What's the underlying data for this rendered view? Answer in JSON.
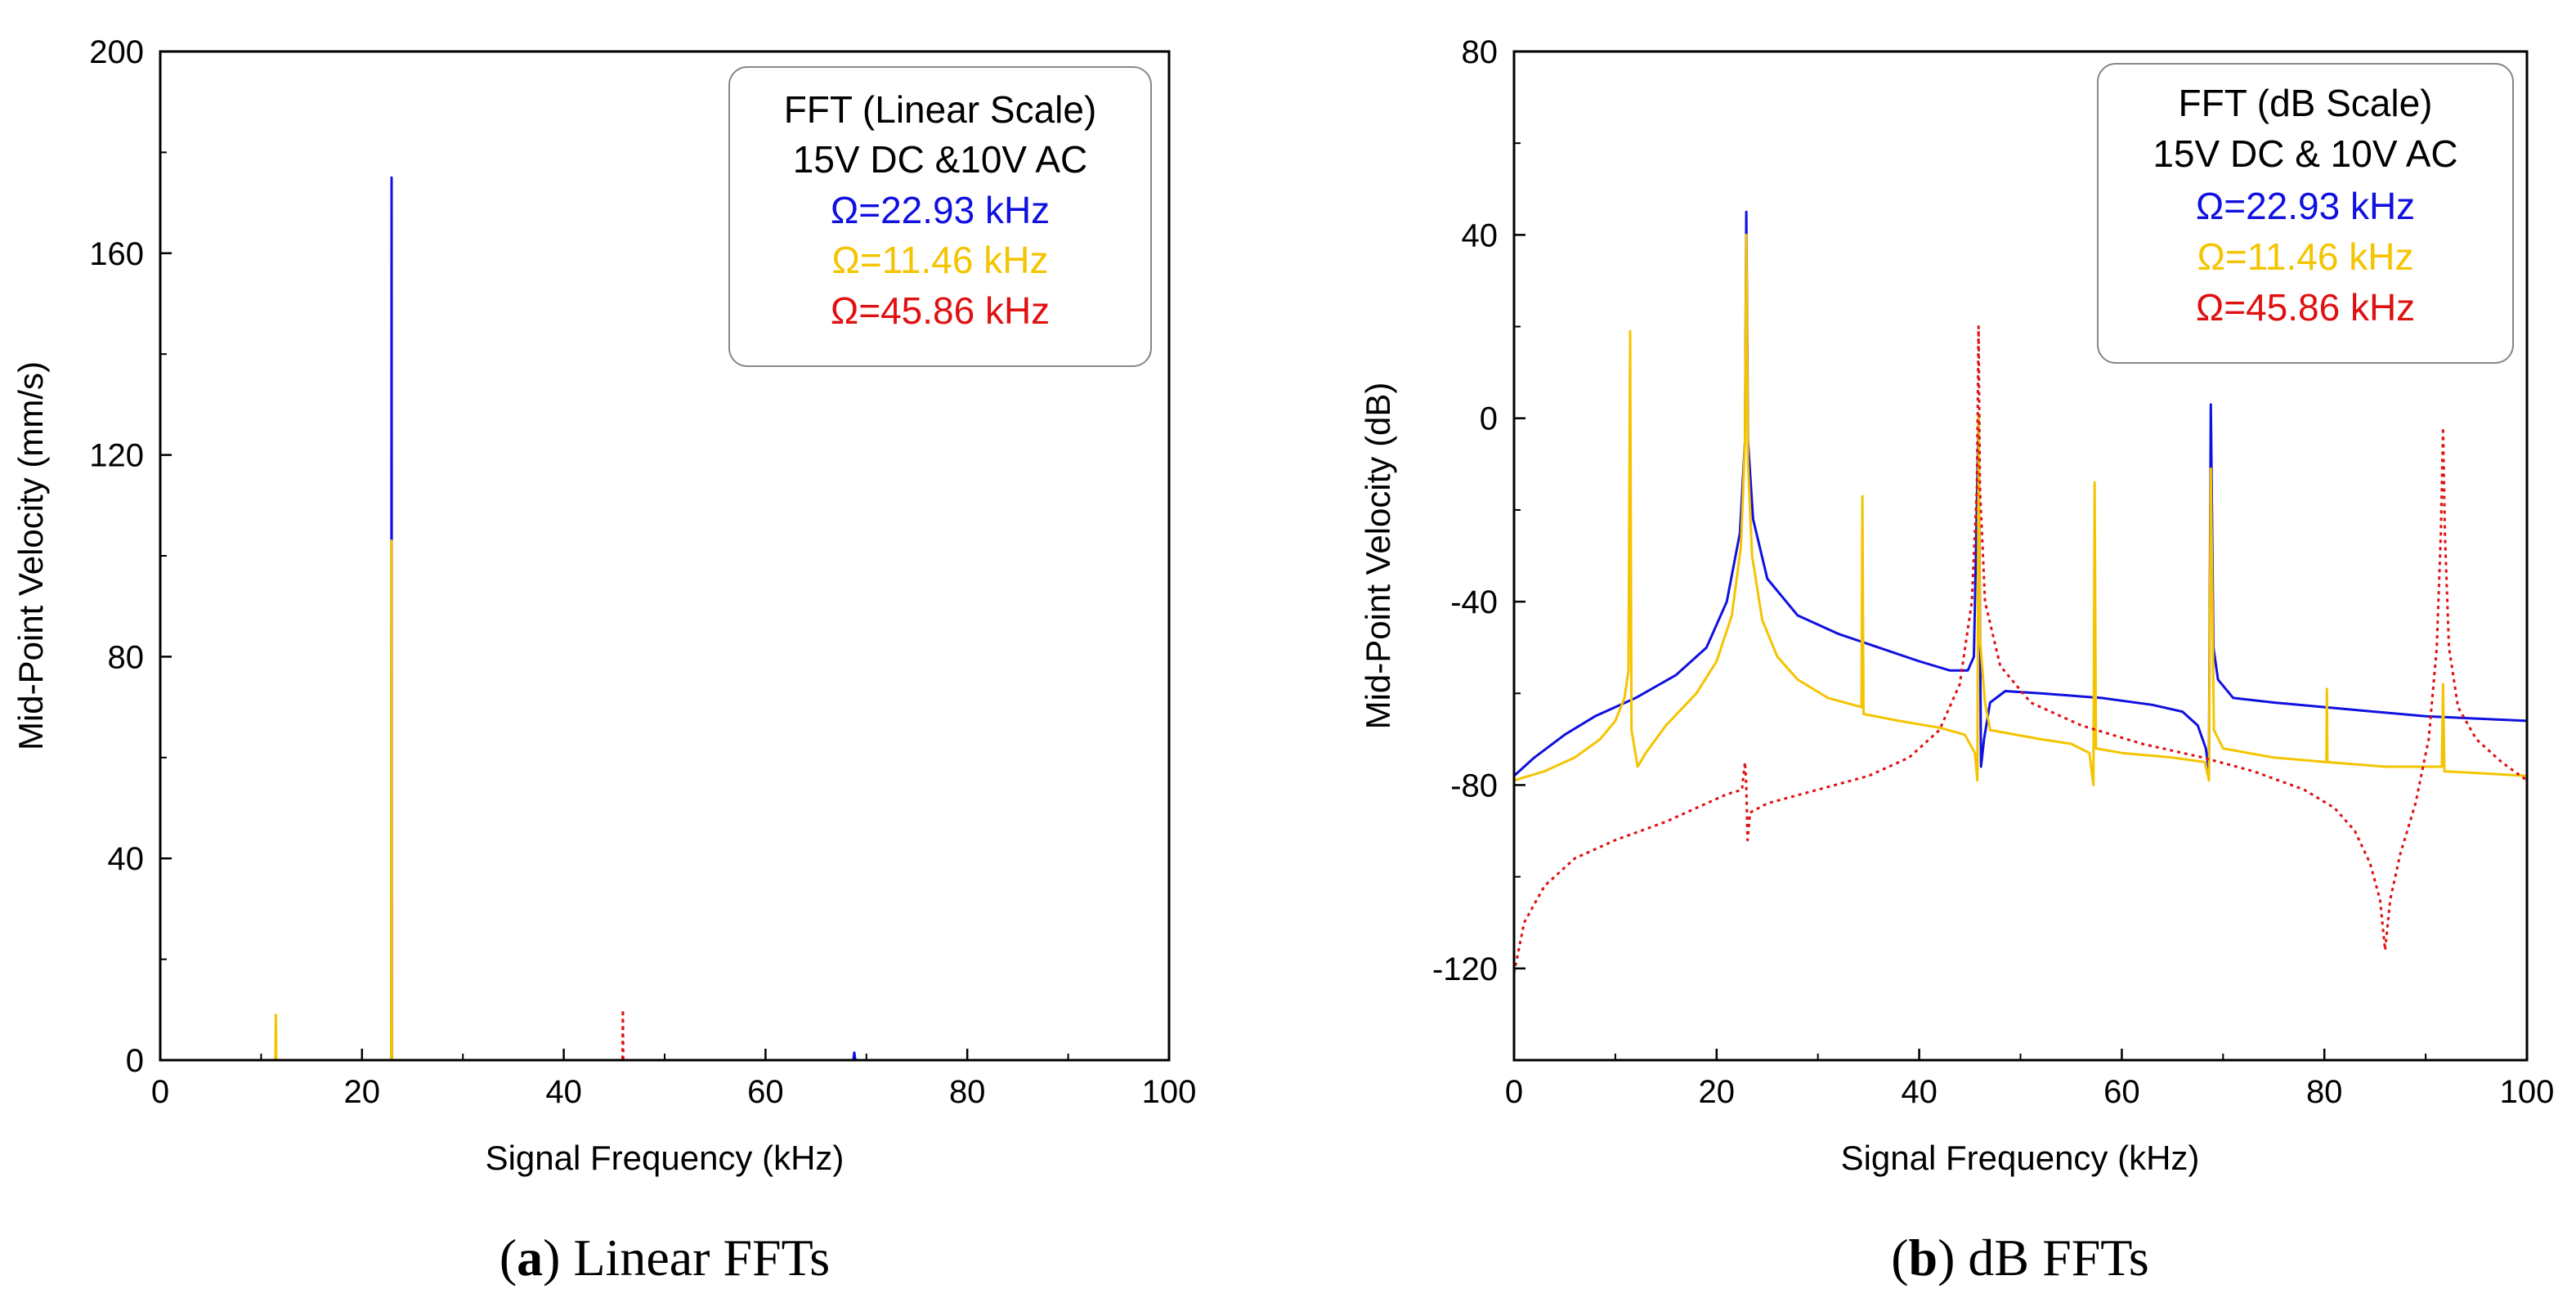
{
  "colors": {
    "blue": "#1010e0",
    "yellow": "#f5c400",
    "red": "#e01010",
    "black": "#000000"
  },
  "chart_data": [
    {
      "id": "a",
      "type": "line",
      "caption_letter": "a",
      "caption_text": " Linear FFTs",
      "xlabel": "Signal Frequency (kHz)",
      "ylabel": "Mid-Point Velocity (mm/s)",
      "xlim": [
        0,
        100
      ],
      "ylim": [
        0,
        200
      ],
      "xticks": [
        0,
        20,
        40,
        60,
        80,
        100
      ],
      "xtick_labels": [
        "0",
        "20",
        "40",
        "60",
        "80",
        "100"
      ],
      "yticks": [
        0,
        40,
        80,
        120,
        160,
        200
      ],
      "ytick_labels": [
        "0",
        "40",
        "80",
        "120",
        "160",
        "200"
      ],
      "legend_title_lines": [
        "FFT (Linear Scale)",
        "15V DC &10V AC"
      ],
      "legend_entries": [
        "Ω=22.93 kHz",
        "Ω=11.46 kHz",
        "Ω=45.86 kHz"
      ],
      "legend_colors": [
        "#1010e0",
        "#f5c400",
        "#e01010"
      ],
      "series": [
        {
          "name": "Ω=22.93 kHz",
          "color": "#1010e0",
          "dash": "",
          "points": [
            [
              0,
              0
            ],
            [
              22.9,
              0
            ],
            [
              22.93,
              175
            ],
            [
              22.96,
              0
            ],
            [
              68.7,
              0
            ],
            [
              68.8,
              1.5
            ],
            [
              68.9,
              0
            ],
            [
              100,
              0
            ]
          ]
        },
        {
          "name": "Ω=11.46 kHz",
          "color": "#f5c400",
          "dash": "",
          "points": [
            [
              0,
              0
            ],
            [
              11.42,
              0
            ],
            [
              11.46,
              9
            ],
            [
              11.5,
              0
            ],
            [
              22.9,
              0
            ],
            [
              22.93,
              103
            ],
            [
              22.96,
              0
            ],
            [
              100,
              0
            ]
          ]
        },
        {
          "name": "Ω=45.86 kHz",
          "color": "#e01010",
          "dash": "4,5",
          "points": [
            [
              0,
              0
            ],
            [
              45.82,
              0
            ],
            [
              45.86,
              10
            ],
            [
              45.9,
              0
            ],
            [
              91.7,
              0
            ],
            [
              91.72,
              0.5
            ],
            [
              91.75,
              0
            ],
            [
              100,
              0
            ]
          ]
        }
      ]
    },
    {
      "id": "b",
      "type": "line",
      "caption_letter": "b",
      "caption_text": " dB FFTs",
      "xlabel": "Signal Frequency (kHz)",
      "ylabel": "Mid-Point Velocity (dB)",
      "xlim": [
        0,
        100
      ],
      "ylim": [
        -140,
        80
      ],
      "xticks": [
        0,
        20,
        40,
        60,
        80,
        100
      ],
      "xtick_labels": [
        "0",
        "20",
        "40",
        "60",
        "80",
        "100"
      ],
      "yticks": [
        -120,
        -80,
        -40,
        0,
        40,
        80
      ],
      "ytick_labels": [
        "-120",
        "-80",
        "-40",
        "0",
        "40",
        "80"
      ],
      "legend_title_lines": [
        "FFT (dB Scale)",
        "15V DC & 10V AC"
      ],
      "legend_entries": [
        "Ω=22.93 kHz",
        "Ω=11.46 kHz",
        "Ω=45.86 kHz"
      ],
      "legend_colors": [
        "#1010e0",
        "#f5c400",
        "#e01010"
      ],
      "series": [
        {
          "name": "Ω=22.93 kHz",
          "color": "#1010e0",
          "dash": "",
          "points": [
            [
              0,
              -78
            ],
            [
              2,
              -74
            ],
            [
              5,
              -69
            ],
            [
              8,
              -65
            ],
            [
              12,
              -61
            ],
            [
              16,
              -56
            ],
            [
              19,
              -50
            ],
            [
              21,
              -40
            ],
            [
              22.3,
              -25
            ],
            [
              22.8,
              -5
            ],
            [
              22.93,
              45
            ],
            [
              23.1,
              -5
            ],
            [
              23.6,
              -22
            ],
            [
              25,
              -35
            ],
            [
              28,
              -43
            ],
            [
              32,
              -47
            ],
            [
              36,
              -50
            ],
            [
              40,
              -53
            ],
            [
              43,
              -55
            ],
            [
              44.8,
              -55
            ],
            [
              45.4,
              -52
            ],
            [
              45.86,
              0
            ],
            [
              46.1,
              -76
            ],
            [
              46.4,
              -70
            ],
            [
              47,
              -62
            ],
            [
              48.5,
              -59.5
            ],
            [
              52,
              -60
            ],
            [
              58,
              -61
            ],
            [
              63,
              -62.5
            ],
            [
              66,
              -64
            ],
            [
              67.5,
              -67
            ],
            [
              68.3,
              -72
            ],
            [
              68.6,
              -77
            ],
            [
              68.79,
              3
            ],
            [
              69.05,
              -50
            ],
            [
              69.5,
              -57
            ],
            [
              71,
              -61
            ],
            [
              75,
              -62
            ],
            [
              80,
              -63
            ],
            [
              85,
              -64
            ],
            [
              90,
              -65
            ],
            [
              95,
              -65.5
            ],
            [
              100,
              -66
            ]
          ]
        },
        {
          "name": "Ω=11.46 kHz",
          "color": "#f5c400",
          "dash": "",
          "points": [
            [
              0,
              -79
            ],
            [
              3,
              -77
            ],
            [
              6,
              -74
            ],
            [
              8.5,
              -70
            ],
            [
              10,
              -66
            ],
            [
              10.9,
              -61
            ],
            [
              11.3,
              -55
            ],
            [
              11.46,
              19
            ],
            [
              11.6,
              -68
            ],
            [
              12.2,
              -76
            ],
            [
              13,
              -73
            ],
            [
              15,
              -67
            ],
            [
              18,
              -60
            ],
            [
              20,
              -53
            ],
            [
              21.5,
              -43
            ],
            [
              22.4,
              -28
            ],
            [
              22.8,
              -5
            ],
            [
              22.93,
              40
            ],
            [
              23.1,
              -10
            ],
            [
              23.5,
              -30
            ],
            [
              24.5,
              -44
            ],
            [
              26,
              -52
            ],
            [
              28,
              -57
            ],
            [
              31,
              -61
            ],
            [
              34.3,
              -63
            ],
            [
              34.39,
              -17
            ],
            [
              34.5,
              -64.5
            ],
            [
              38,
              -66
            ],
            [
              42,
              -67.5
            ],
            [
              44.5,
              -69
            ],
            [
              45.5,
              -73
            ],
            [
              45.75,
              -79
            ],
            [
              45.86,
              1
            ],
            [
              46.0,
              -48
            ],
            [
              46.5,
              -62
            ],
            [
              47,
              -68
            ],
            [
              52,
              -70
            ],
            [
              55,
              -71
            ],
            [
              56.8,
              -73
            ],
            [
              57.2,
              -80
            ],
            [
              57.32,
              -14
            ],
            [
              57.45,
              -72
            ],
            [
              60,
              -73
            ],
            [
              65,
              -74
            ],
            [
              68.2,
              -75
            ],
            [
              68.6,
              -79
            ],
            [
              68.79,
              -11
            ],
            [
              69.1,
              -68
            ],
            [
              70,
              -72
            ],
            [
              75,
              -74
            ],
            [
              80.2,
              -75
            ],
            [
              80.25,
              -59
            ],
            [
              80.3,
              -75
            ],
            [
              86,
              -76
            ],
            [
              91.6,
              -76
            ],
            [
              91.72,
              -58
            ],
            [
              91.85,
              -77
            ],
            [
              96,
              -77.5
            ],
            [
              100,
              -78
            ]
          ]
        },
        {
          "name": "Ω=45.86 kHz",
          "color": "#e01010",
          "dash": "4,5",
          "points": [
            [
              0,
              -121
            ],
            [
              1,
              -110
            ],
            [
              3,
              -102
            ],
            [
              6,
              -96
            ],
            [
              10,
              -92
            ],
            [
              15,
              -88
            ],
            [
              19,
              -84
            ],
            [
              21,
              -82
            ],
            [
              22.5,
              -81
            ],
            [
              22.8,
              -75
            ],
            [
              22.93,
              -80
            ],
            [
              23.05,
              -92
            ],
            [
              23.3,
              -86
            ],
            [
              25,
              -84
            ],
            [
              30,
              -81
            ],
            [
              35,
              -78
            ],
            [
              39,
              -74
            ],
            [
              42,
              -68
            ],
            [
              44,
              -58
            ],
            [
              45.2,
              -40
            ],
            [
              45.7,
              -15
            ],
            [
              45.86,
              20
            ],
            [
              46.0,
              -15
            ],
            [
              46.5,
              -40
            ],
            [
              48,
              -54
            ],
            [
              51,
              -62
            ],
            [
              56,
              -67
            ],
            [
              62,
              -71
            ],
            [
              68,
              -74
            ],
            [
              73,
              -77
            ],
            [
              78,
              -81
            ],
            [
              81,
              -85
            ],
            [
              83,
              -90
            ],
            [
              84.5,
              -97
            ],
            [
              85.5,
              -105
            ],
            [
              86.0,
              -116
            ],
            [
              86.5,
              -105
            ],
            [
              87.5,
              -95
            ],
            [
              89,
              -84
            ],
            [
              90.3,
              -70
            ],
            [
              91.1,
              -50
            ],
            [
              91.5,
              -25
            ],
            [
              91.72,
              -2
            ],
            [
              91.9,
              -25
            ],
            [
              92.3,
              -50
            ],
            [
              93.2,
              -63
            ],
            [
              95,
              -70
            ],
            [
              97.5,
              -75
            ],
            [
              100,
              -79
            ]
          ]
        }
      ]
    }
  ]
}
